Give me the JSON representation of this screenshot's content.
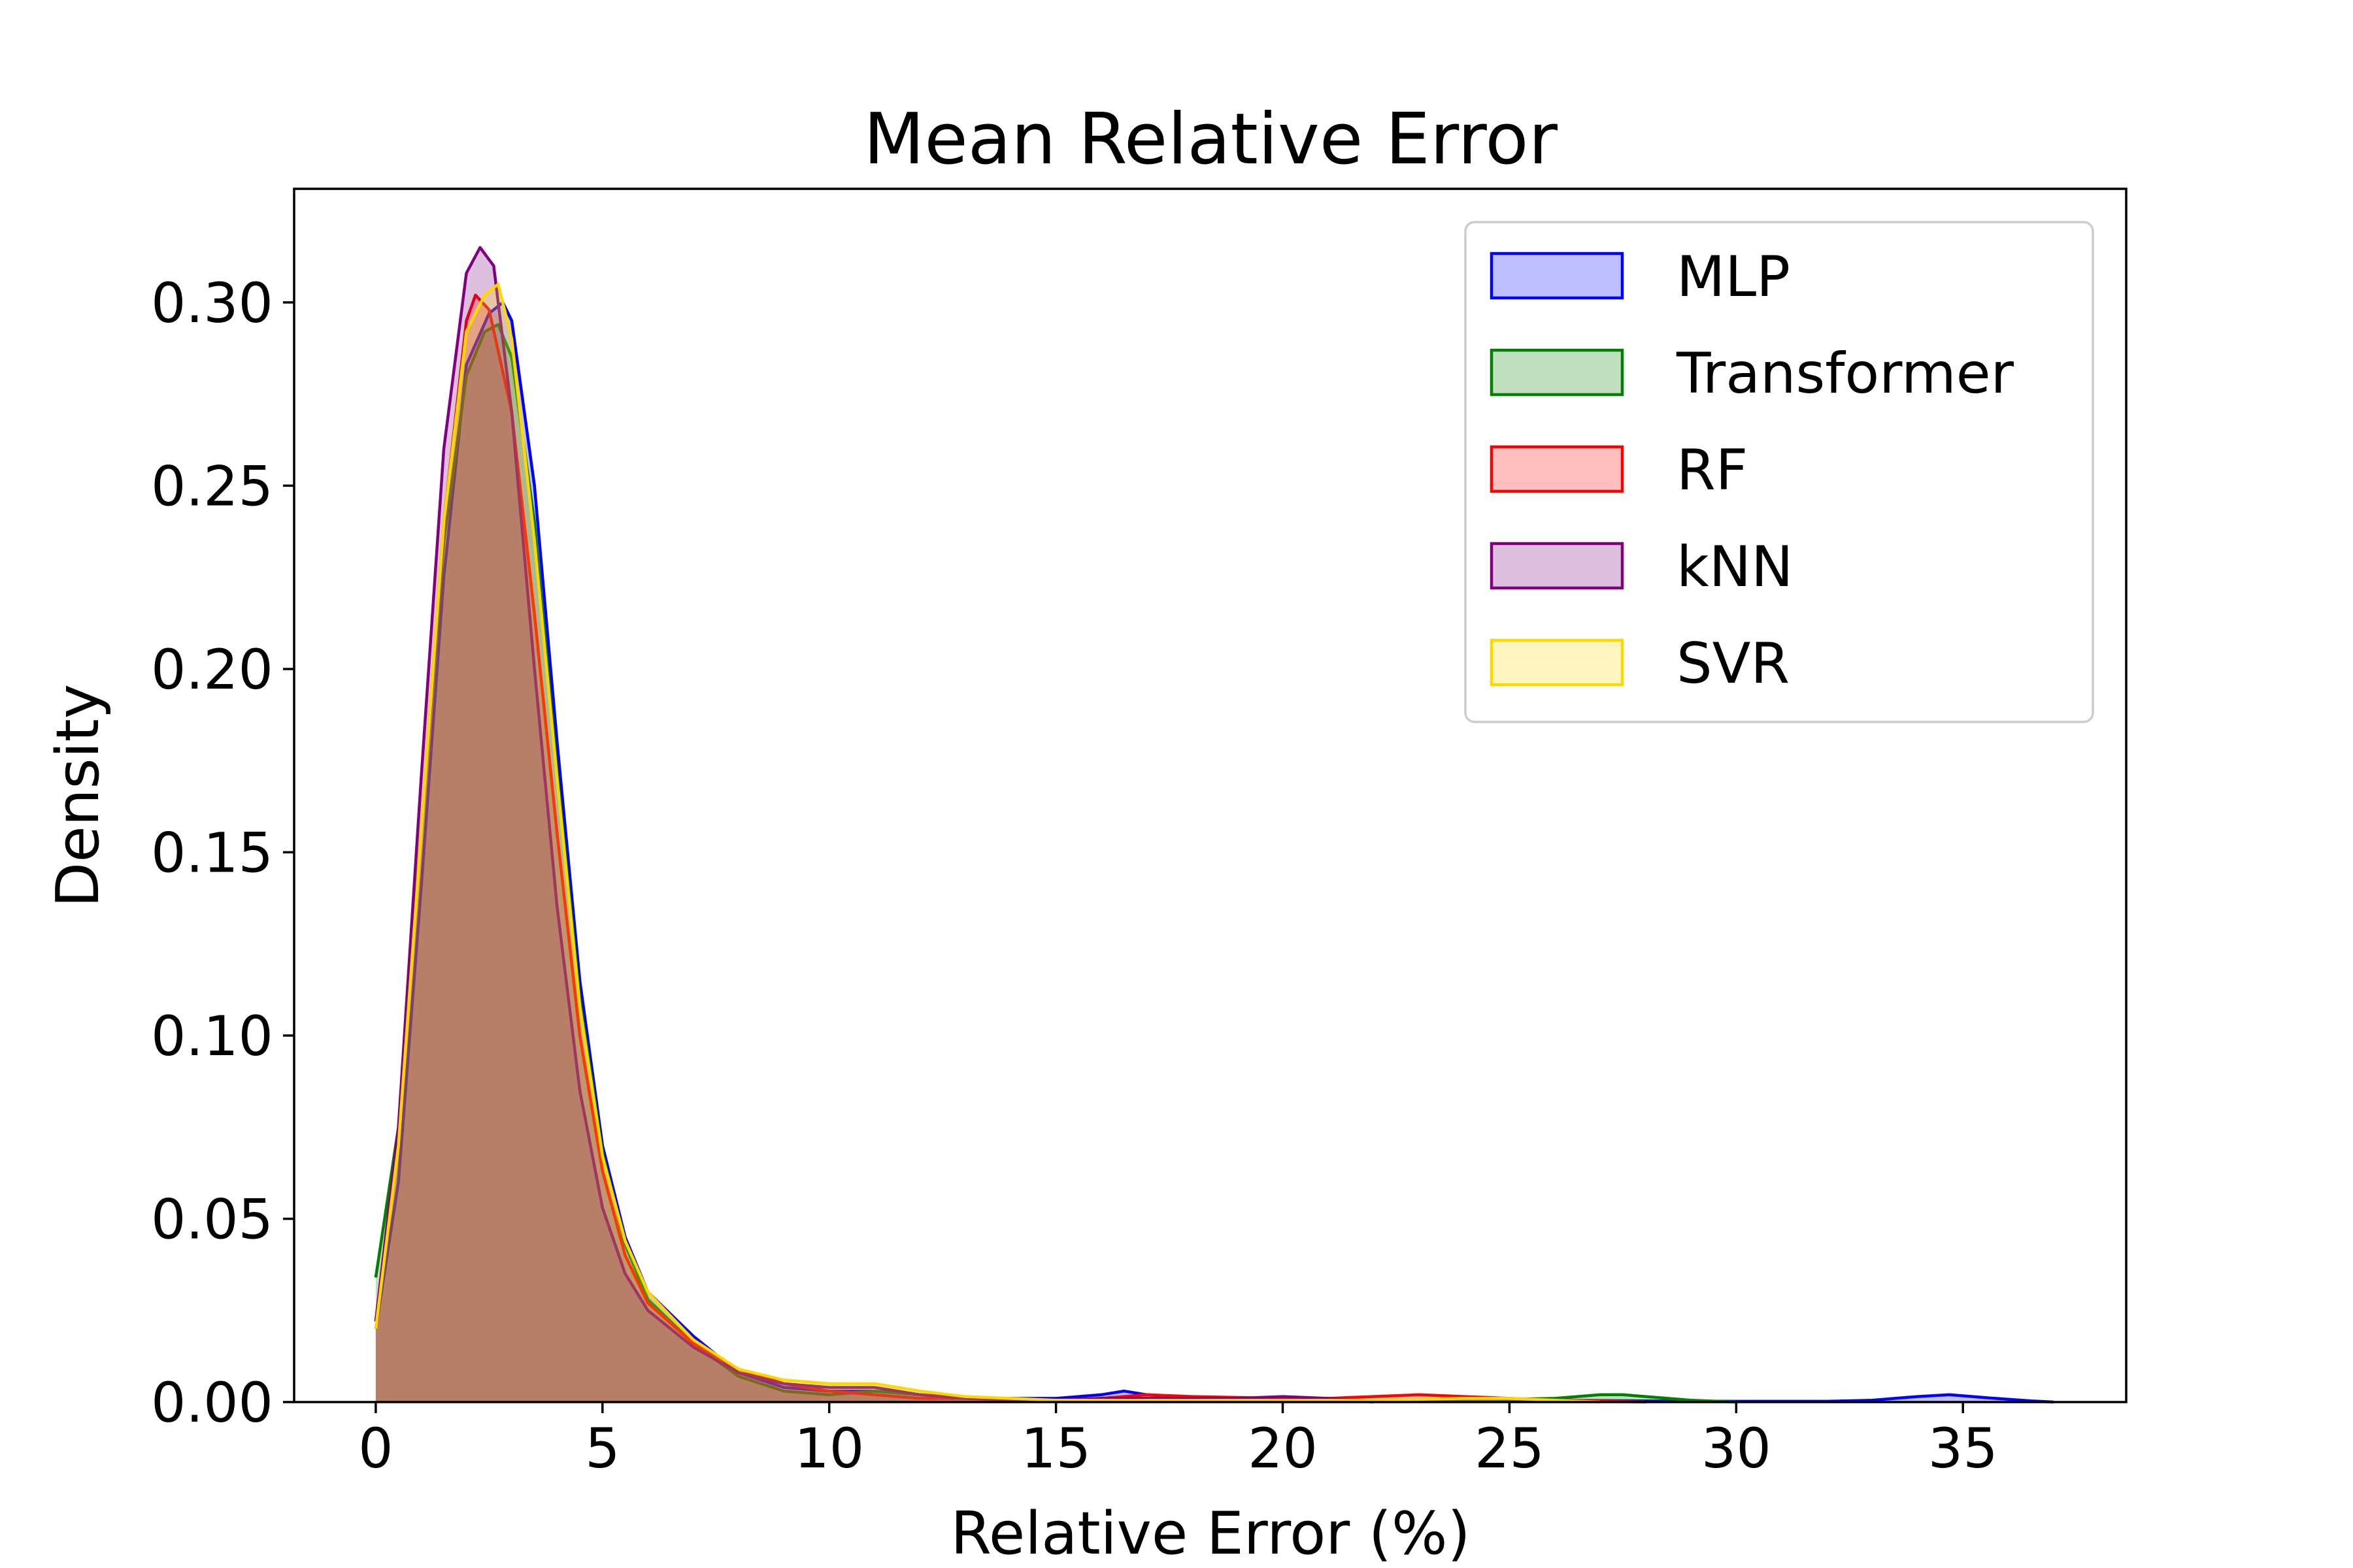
{
  "chart_data": {
    "type": "area",
    "title": "Mean Relative Error",
    "xlabel": "Relative Error (%)",
    "ylabel": "Density",
    "xlim": [
      -1.8,
      38.6
    ],
    "ylim": [
      0,
      0.331
    ],
    "xticks": [
      "0",
      "5",
      "10",
      "15",
      "20",
      "25",
      "30",
      "35"
    ],
    "yticks": [
      "0.00",
      "0.05",
      "0.10",
      "0.15",
      "0.20",
      "0.25",
      "0.30"
    ],
    "grid": false,
    "legend_position": "top-right",
    "colors": {
      "MLP": "#0000ff",
      "Transformer": "#008000",
      "RF": "#ff0000",
      "kNN": "#800080",
      "SVR": "#ffd700"
    },
    "series": [
      {
        "name": "MLP",
        "x": [
          0,
          0.5,
          1,
          1.5,
          2,
          2.5,
          2.8,
          3,
          3.5,
          4,
          4.5,
          5,
          5.5,
          6,
          7,
          8,
          9,
          10,
          11,
          12,
          13,
          14,
          15,
          16,
          16.5,
          17,
          18,
          19,
          20,
          22,
          24,
          26,
          28,
          30,
          32,
          33,
          34,
          34.7,
          35.5,
          36.5,
          37
        ],
        "y": [
          0.02,
          0.06,
          0.14,
          0.225,
          0.283,
          0.297,
          0.3,
          0.295,
          0.25,
          0.18,
          0.115,
          0.07,
          0.045,
          0.03,
          0.018,
          0.008,
          0.004,
          0.003,
          0.003,
          0.002,
          0.001,
          0.001,
          0.001,
          0.002,
          0.003,
          0.002,
          0.001,
          0.0005,
          0.0005,
          0.0005,
          0.0005,
          0.0005,
          0.0003,
          0.0002,
          0.0002,
          0.0005,
          0.0015,
          0.002,
          0.0012,
          0.0003,
          0
        ]
      },
      {
        "name": "Transformer",
        "x": [
          0,
          0.5,
          1,
          1.5,
          2,
          2.4,
          2.7,
          3,
          3.5,
          4,
          4.5,
          5,
          5.5,
          6,
          7,
          8,
          9,
          10,
          11,
          12,
          13,
          14,
          15,
          16,
          18,
          20,
          22,
          24,
          26,
          27,
          27.5,
          28,
          29,
          30
        ],
        "y": [
          0.034,
          0.075,
          0.155,
          0.235,
          0.28,
          0.292,
          0.294,
          0.285,
          0.24,
          0.172,
          0.11,
          0.068,
          0.043,
          0.028,
          0.016,
          0.007,
          0.003,
          0.002,
          0.003,
          0.002,
          0.001,
          0.001,
          0.0005,
          0.0005,
          0.0005,
          0.0005,
          0.0005,
          0.0005,
          0.001,
          0.002,
          0.002,
          0.0015,
          0.0005,
          0
        ]
      },
      {
        "name": "RF",
        "x": [
          0,
          0.5,
          1,
          1.5,
          2,
          2.2,
          2.5,
          3,
          3.5,
          4,
          4.5,
          5,
          5.5,
          6,
          7,
          8,
          9,
          10,
          11,
          12,
          13,
          15,
          16,
          17,
          18,
          20,
          21,
          22,
          23,
          24,
          25,
          26,
          27,
          28
        ],
        "y": [
          0.022,
          0.07,
          0.155,
          0.24,
          0.295,
          0.302,
          0.298,
          0.27,
          0.215,
          0.155,
          0.1,
          0.063,
          0.04,
          0.027,
          0.016,
          0.009,
          0.005,
          0.003,
          0.002,
          0.001,
          0.001,
          0.0005,
          0.001,
          0.002,
          0.0015,
          0.001,
          0.001,
          0.0015,
          0.002,
          0.0015,
          0.001,
          0.0005,
          0.0003,
          0
        ]
      },
      {
        "name": "kNN",
        "x": [
          0,
          0.5,
          1,
          1.5,
          2,
          2.3,
          2.6,
          3,
          3.5,
          4,
          4.5,
          5,
          5.5,
          6,
          7,
          8,
          9,
          10,
          11,
          12,
          13,
          14,
          15,
          16,
          17,
          18,
          19,
          20,
          21,
          22
        ],
        "y": [
          0.022,
          0.075,
          0.17,
          0.26,
          0.308,
          0.315,
          0.31,
          0.27,
          0.2,
          0.135,
          0.085,
          0.053,
          0.035,
          0.025,
          0.015,
          0.008,
          0.005,
          0.004,
          0.004,
          0.002,
          0.001,
          0.0005,
          0.0005,
          0.001,
          0.001,
          0.001,
          0.001,
          0.0015,
          0.001,
          0
        ]
      },
      {
        "name": "SVR",
        "x": [
          0,
          0.5,
          1,
          1.5,
          2,
          2.4,
          2.7,
          3,
          3.5,
          4,
          4.5,
          5,
          5.5,
          6,
          7,
          8,
          9,
          10,
          10.5,
          11,
          11.5,
          12,
          13,
          14,
          15,
          16,
          18,
          20,
          22,
          24,
          25,
          26,
          27
        ],
        "y": [
          0.02,
          0.07,
          0.155,
          0.24,
          0.292,
          0.302,
          0.305,
          0.29,
          0.235,
          0.17,
          0.108,
          0.067,
          0.044,
          0.03,
          0.017,
          0.009,
          0.006,
          0.005,
          0.005,
          0.005,
          0.004,
          0.003,
          0.0015,
          0.001,
          0.0005,
          0.0005,
          0.0005,
          0.0005,
          0.0005,
          0.001,
          0.001,
          0.0005,
          0
        ]
      }
    ]
  }
}
